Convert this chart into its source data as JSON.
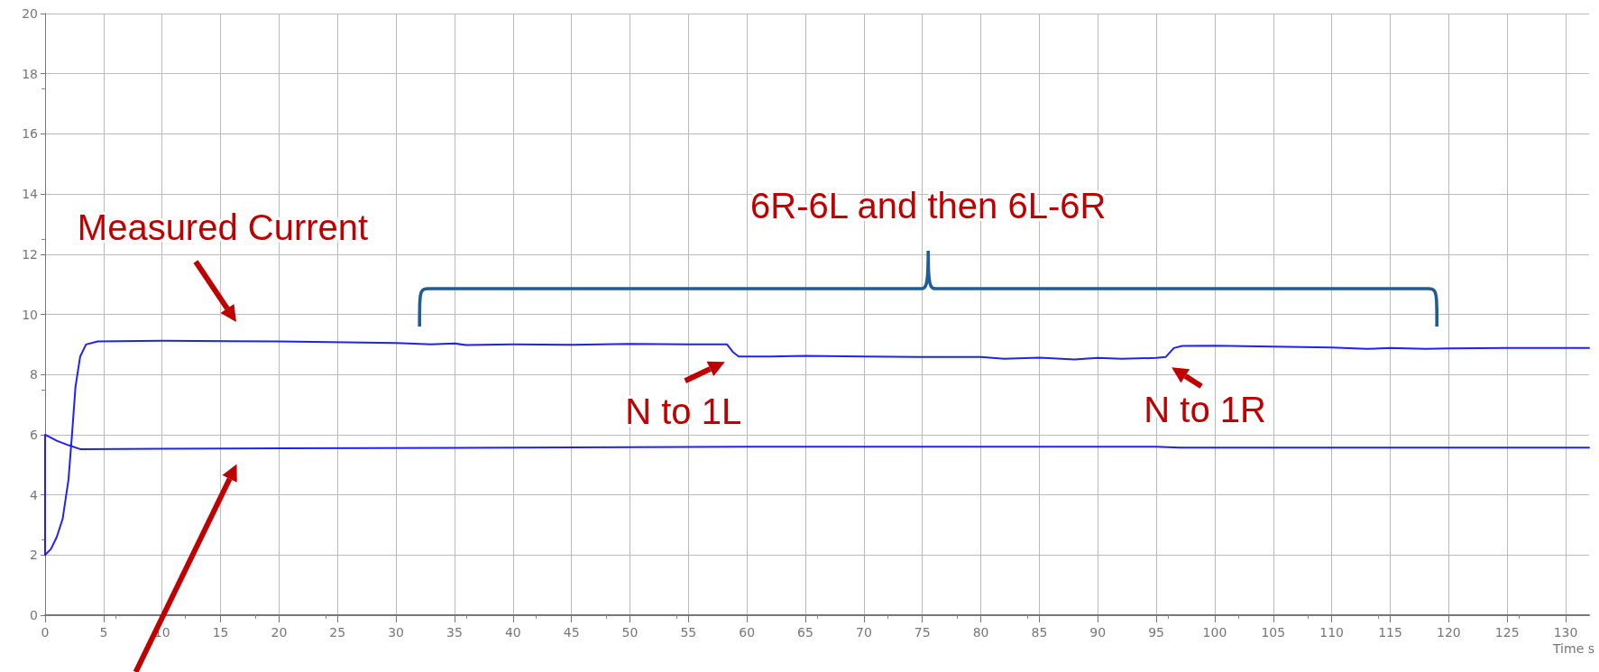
{
  "chart_data": {
    "type": "line",
    "xlabel": "Time s",
    "series": [
      {
        "color": "#2020ff",
        "x": [
          0,
          0.5,
          1,
          1.5,
          2,
          2.3,
          2.6,
          3,
          3.5,
          4.5,
          10,
          20,
          30,
          32,
          33,
          35,
          36,
          40,
          45,
          50,
          55,
          58.3,
          58.8,
          59.3,
          62,
          65,
          70,
          75,
          80,
          82,
          85,
          88,
          90,
          92,
          95,
          95.8,
          96.5,
          97.2,
          100,
          105,
          110,
          113,
          115,
          118,
          120,
          125,
          132
        ],
        "values": [
          2.0,
          2.2,
          2.6,
          3.2,
          4.5,
          6.0,
          7.6,
          8.6,
          9.0,
          9.1,
          9.12,
          9.1,
          9.05,
          9.02,
          9.0,
          9.03,
          8.98,
          9.0,
          8.99,
          9.02,
          9.0,
          9.0,
          8.75,
          8.6,
          8.6,
          8.62,
          8.6,
          8.58,
          8.58,
          8.52,
          8.56,
          8.5,
          8.55,
          8.52,
          8.55,
          8.58,
          8.88,
          8.95,
          8.96,
          8.93,
          8.9,
          8.85,
          8.88,
          8.85,
          8.87,
          8.88,
          8.88
        ]
      },
      {
        "color": "#2020ff",
        "x": [
          0,
          0,
          1,
          2,
          3,
          10,
          20,
          40,
          60,
          80,
          95,
          97,
          132
        ],
        "values": [
          2.0,
          6.0,
          5.8,
          5.65,
          5.52,
          5.53,
          5.55,
          5.57,
          5.6,
          5.6,
          5.6,
          5.57,
          5.57
        ]
      }
    ],
    "xlim": [
      0,
      132
    ],
    "xticks": [
      0,
      5,
      10,
      15,
      20,
      25,
      30,
      35,
      40,
      45,
      50,
      55,
      60,
      65,
      70,
      75,
      80,
      85,
      90,
      95,
      100,
      105,
      110,
      115,
      120,
      125,
      130
    ],
    "ylim": [
      0,
      20
    ],
    "yticks": [
      0,
      2,
      4,
      6,
      8,
      10,
      12,
      14,
      16,
      18,
      20
    ],
    "grid": true,
    "marker": "none",
    "line_style": "solid",
    "annotations": [
      "Measured Current",
      {
        "text": "N to 1L",
        "x": 58.5,
        "y": 8.75
      },
      {
        "text": "N to 1R",
        "x": 96,
        "y": 8.6
      },
      "6R-6L and then 6L-6R"
    ]
  }
}
